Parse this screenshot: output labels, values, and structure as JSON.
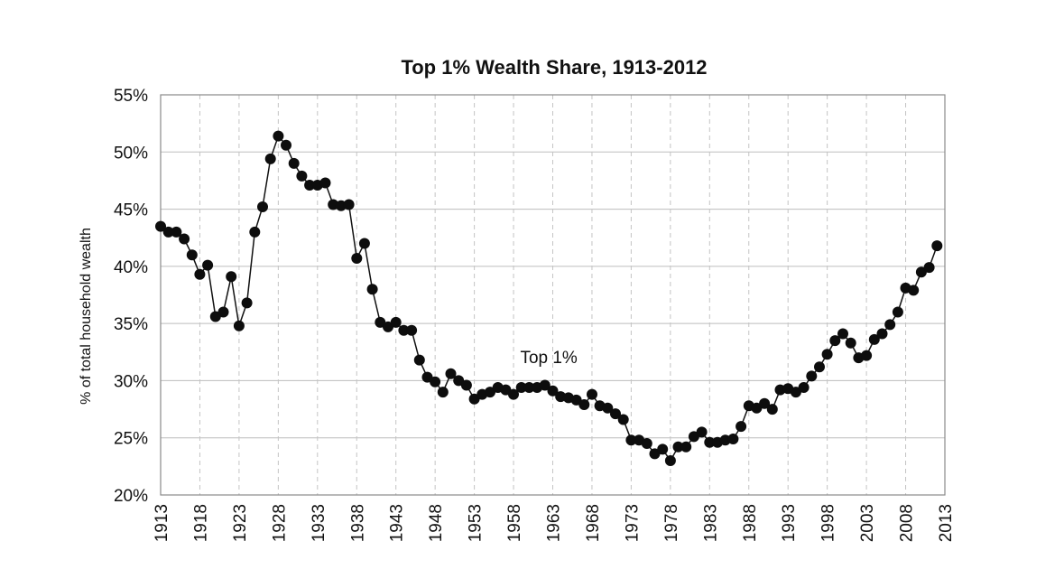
{
  "chart_data": {
    "type": "line",
    "title": "Top 1% Wealth Share, 1913-2012",
    "xlabel": "",
    "ylabel": "% of total household wealth",
    "xlim": [
      1913,
      2013
    ],
    "ylim": [
      20,
      55
    ],
    "x_ticks": [
      "1913",
      "1918",
      "1923",
      "1928",
      "1933",
      "1938",
      "1943",
      "1948",
      "1953",
      "1958",
      "1963",
      "1968",
      "1973",
      "1978",
      "1983",
      "1988",
      "1993",
      "1998",
      "2003",
      "2008",
      "2013"
    ],
    "y_ticks": [
      "20%",
      "25%",
      "30%",
      "35%",
      "40%",
      "45%",
      "50%",
      "55%"
    ],
    "grid": true,
    "annotation": {
      "text": "Top 1%",
      "x": 1962.5,
      "y": 32
    },
    "series": [
      {
        "name": "Top 1%",
        "color": "#111111",
        "x": [
          1913,
          1914,
          1915,
          1916,
          1917,
          1918,
          1919,
          1920,
          1921,
          1922,
          1923,
          1924,
          1925,
          1926,
          1927,
          1928,
          1929,
          1930,
          1931,
          1932,
          1933,
          1934,
          1935,
          1936,
          1937,
          1938,
          1939,
          1940,
          1941,
          1942,
          1943,
          1944,
          1945,
          1946,
          1947,
          1948,
          1949,
          1950,
          1951,
          1952,
          1953,
          1954,
          1955,
          1956,
          1957,
          1958,
          1959,
          1960,
          1961,
          1962,
          1963,
          1964,
          1965,
          1966,
          1967,
          1968,
          1969,
          1970,
          1971,
          1972,
          1973,
          1974,
          1975,
          1976,
          1977,
          1978,
          1979,
          1980,
          1981,
          1982,
          1983,
          1984,
          1985,
          1986,
          1987,
          1988,
          1989,
          1990,
          1991,
          1992,
          1993,
          1994,
          1995,
          1996,
          1997,
          1998,
          1999,
          2000,
          2001,
          2002,
          2003,
          2004,
          2005,
          2006,
          2007,
          2008,
          2009,
          2010,
          2011,
          2012
        ],
        "values": [
          43.5,
          43.0,
          43.0,
          42.4,
          41.0,
          39.3,
          40.1,
          35.6,
          36.0,
          39.1,
          34.8,
          36.8,
          43.0,
          45.2,
          49.4,
          51.4,
          50.6,
          49.0,
          47.9,
          47.1,
          47.1,
          47.3,
          45.4,
          45.3,
          45.4,
          40.7,
          42.0,
          38.0,
          35.1,
          34.7,
          35.1,
          34.4,
          34.4,
          31.8,
          30.3,
          29.9,
          29.0,
          30.6,
          30.0,
          29.6,
          28.4,
          28.8,
          29.0,
          29.4,
          29.2,
          28.8,
          29.4,
          29.4,
          29.4,
          29.6,
          29.1,
          28.6,
          28.5,
          28.3,
          27.9,
          28.8,
          27.8,
          27.6,
          27.1,
          26.6,
          24.8,
          24.8,
          24.5,
          23.6,
          24.0,
          23.0,
          24.2,
          24.2,
          25.1,
          25.5,
          24.6,
          24.6,
          24.8,
          24.9,
          26.0,
          27.8,
          27.6,
          28.0,
          27.5,
          29.2,
          29.3,
          29.0,
          29.4,
          30.4,
          31.2,
          32.3,
          33.5,
          34.1,
          33.3,
          32.0,
          32.2,
          33.6,
          34.1,
          34.9,
          36.0,
          38.1,
          37.9,
          39.5,
          39.9,
          41.8
        ]
      }
    ]
  }
}
